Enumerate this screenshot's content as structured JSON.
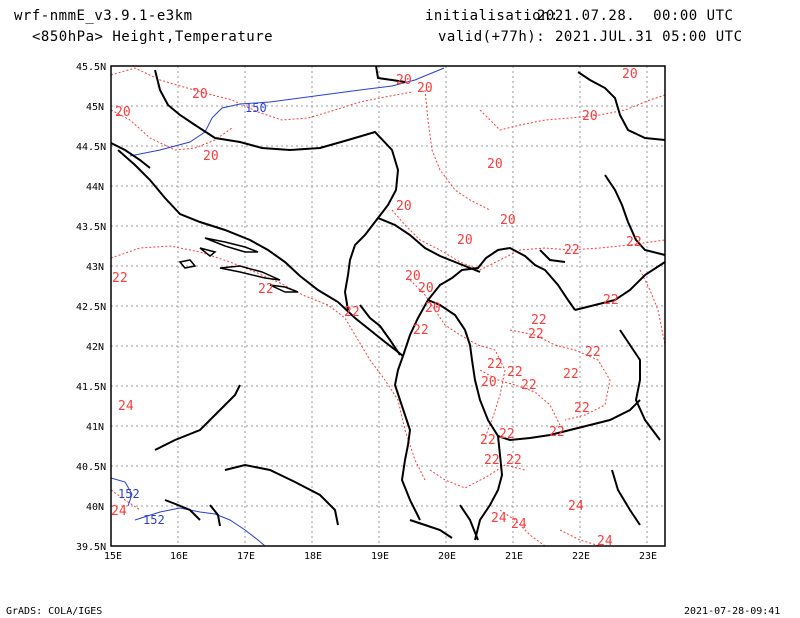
{
  "header": {
    "model": "wrf-nmmE_v3.9.1-e3km",
    "level_fields": "<850hPa> Height,Temperature",
    "init_label": "initialisation:",
    "init_value": "2021.07.28.  00:00 UTC",
    "valid_label": "valid(+77h):",
    "valid_value": "2021.JUL.31 05:00 UTC"
  },
  "footer": {
    "software": "GrADS: COLA/IGES",
    "generated": "2021-07-28-09:41"
  },
  "map": {
    "lon_ticks": [
      "15E",
      "16E",
      "17E",
      "18E",
      "19E",
      "20E",
      "21E",
      "22E",
      "23E"
    ],
    "lat_ticks": [
      "45.5N",
      "45N",
      "44.5N",
      "44N",
      "43.5N",
      "43N",
      "42.5N",
      "42N",
      "41.5N",
      "41N",
      "40.5N",
      "40N",
      "39.5N"
    ],
    "colors": {
      "temperature": "#ff3b3b",
      "height": "#2a3fd6",
      "coast": "#000000",
      "grid": "#999999"
    },
    "height_labels": [
      "150",
      "152",
      "152"
    ],
    "temperature_labels": [
      "20",
      "20",
      "20",
      "20",
      "20",
      "20",
      "20",
      "20",
      "20",
      "20",
      "20",
      "20",
      "20",
      "20",
      "20",
      "22",
      "22",
      "22",
      "22",
      "22",
      "22",
      "22",
      "22",
      "22",
      "22",
      "22",
      "22",
      "22",
      "22",
      "22",
      "22",
      "22",
      "22",
      "22",
      "22",
      "24",
      "24",
      "24",
      "24",
      "24",
      "24"
    ]
  }
}
